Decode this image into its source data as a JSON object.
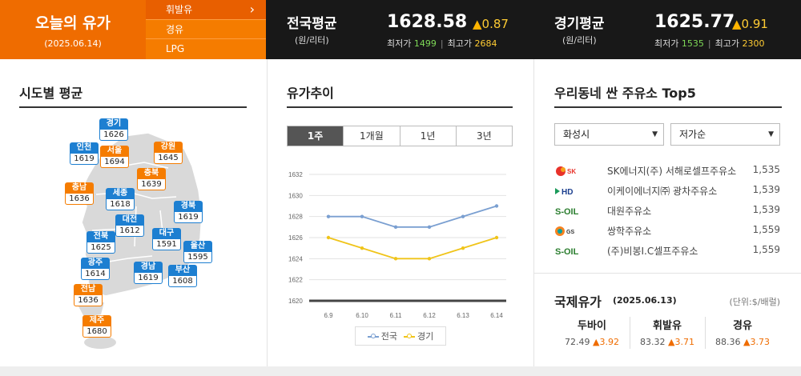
{
  "header": {
    "title": "오늘의 유가",
    "date": "(2025.06.14)",
    "fuel_tabs": [
      {
        "label": "휘발유",
        "active": true
      },
      {
        "label": "경유",
        "active": false
      },
      {
        "label": "LPG",
        "active": false
      }
    ],
    "national": {
      "label": "전국평균",
      "unit": "(원/리터)",
      "price": "1628.58",
      "change": "0.87",
      "min_label": "최저가",
      "min": "1499",
      "max_label": "최고가",
      "max": "2684"
    },
    "gyeonggi": {
      "label": "경기평균",
      "unit": "(원/리터)",
      "price": "1625.77",
      "change": "0.91",
      "min_label": "최저가",
      "min": "1535",
      "max_label": "최고가",
      "max": "2300"
    }
  },
  "regional": {
    "title": "시도별 평균",
    "pins": [
      {
        "name": "경기",
        "value": "1626",
        "color": "blue"
      },
      {
        "name": "인천",
        "value": "1619",
        "color": "blue"
      },
      {
        "name": "서울",
        "value": "1694",
        "color": "orange"
      },
      {
        "name": "강원",
        "value": "1645",
        "color": "orange"
      },
      {
        "name": "충북",
        "value": "1639",
        "color": "orange"
      },
      {
        "name": "충남",
        "value": "1636",
        "color": "orange"
      },
      {
        "name": "세종",
        "value": "1618",
        "color": "blue"
      },
      {
        "name": "경북",
        "value": "1619",
        "color": "blue"
      },
      {
        "name": "대전",
        "value": "1612",
        "color": "blue"
      },
      {
        "name": "전북",
        "value": "1625",
        "color": "blue"
      },
      {
        "name": "대구",
        "value": "1591",
        "color": "blue"
      },
      {
        "name": "울산",
        "value": "1595",
        "color": "blue"
      },
      {
        "name": "광주",
        "value": "1614",
        "color": "blue"
      },
      {
        "name": "경남",
        "value": "1619",
        "color": "blue"
      },
      {
        "name": "부산",
        "value": "1608",
        "color": "blue"
      },
      {
        "name": "전남",
        "value": "1636",
        "color": "orange"
      },
      {
        "name": "제주",
        "value": "1680",
        "color": "orange"
      }
    ]
  },
  "trend": {
    "title": "유가추이",
    "tabs": [
      {
        "label": "1주",
        "active": true
      },
      {
        "label": "1개월",
        "active": false
      },
      {
        "label": "1년",
        "active": false
      },
      {
        "label": "3년",
        "active": false
      }
    ]
  },
  "chart_data": {
    "type": "line",
    "x": [
      "6.9",
      "6.10",
      "6.11",
      "6.12",
      "6.13",
      "6.14"
    ],
    "series": [
      {
        "name": "전국",
        "values": [
          1628,
          1628,
          1627,
          1627,
          1628,
          1629
        ],
        "color": "#7a9fd1"
      },
      {
        "name": "경기",
        "values": [
          1626,
          1625,
          1624,
          1624,
          1625,
          1626
        ],
        "color": "#f0c419"
      }
    ],
    "yticks": [
      1620,
      1622,
      1624,
      1626,
      1628,
      1630,
      1632
    ],
    "ylim": [
      1620,
      1632
    ],
    "grid": true,
    "legend": "bottom"
  },
  "top5": {
    "title": "우리동네 싼 주유소 Top5",
    "region_select": "화성시",
    "sort_select": "저가순",
    "stations": [
      {
        "brand": "SK에너지",
        "name": "SK에너지(주) 서해로셀프주유소",
        "price": "1,535"
      },
      {
        "brand": "HD현대오일뱅크",
        "name": "이케이에너지㈜ 광차주유소",
        "price": "1,539"
      },
      {
        "brand": "S-OIL",
        "name": "대원주유소",
        "price": "1,539"
      },
      {
        "brand": "GS칼텍스",
        "name": "쌍학주유소",
        "price": "1,559"
      },
      {
        "brand": "S-OIL",
        "name": "(주)비봉I.C셀프주유소",
        "price": "1,559"
      }
    ]
  },
  "intl": {
    "title": "국제유가",
    "date": "(2025.06.13)",
    "unit": "(단위:$/배럴)",
    "items": [
      {
        "name": "두바이",
        "value": "72.49",
        "change": "3.92"
      },
      {
        "name": "휘발유",
        "value": "83.32",
        "change": "3.71"
      },
      {
        "name": "경유",
        "value": "88.36",
        "change": "3.73"
      }
    ]
  }
}
